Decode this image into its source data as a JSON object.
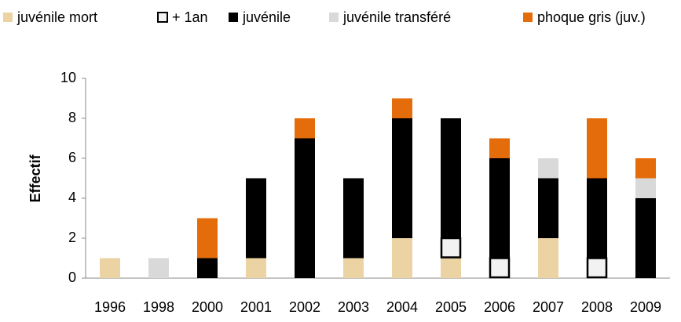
{
  "chart_data": {
    "type": "bar",
    "stacked": true,
    "y_label": "Effectif",
    "categories": [
      "1996",
      "1998",
      "2000",
      "2001",
      "2002",
      "2003",
      "2004",
      "2005",
      "2006",
      "2007",
      "2008",
      "2009"
    ],
    "series": [
      {
        "name": "juvénile mort",
        "color": "#ecd3a3",
        "values": [
          1,
          0,
          0,
          1,
          0,
          1,
          2,
          1,
          0,
          2,
          0,
          0
        ]
      },
      {
        "name": "+ 1an",
        "color": "#f2f2f2",
        "values": [
          0,
          0,
          0,
          0,
          0,
          0,
          0,
          1,
          1,
          0,
          1,
          0
        ]
      },
      {
        "name": "juvénile",
        "color": "#000000",
        "values": [
          0,
          0,
          1,
          4,
          7,
          4,
          6,
          6,
          5,
          3,
          4,
          4
        ]
      },
      {
        "name": "juvénile transféré",
        "color": "#d9d9d9",
        "values": [
          0,
          1,
          0,
          0,
          0,
          0,
          0,
          0,
          0,
          1,
          0,
          1
        ]
      },
      {
        "name": "phoque gris (juv.)",
        "color": "#e46c0a",
        "values": [
          0,
          0,
          2,
          0,
          1,
          0,
          1,
          0,
          1,
          0,
          3,
          1
        ]
      }
    ],
    "ylim": [
      0,
      10
    ],
    "yticks": [
      0,
      2,
      4,
      6,
      8,
      10
    ],
    "grid": false,
    "legend": "top"
  }
}
